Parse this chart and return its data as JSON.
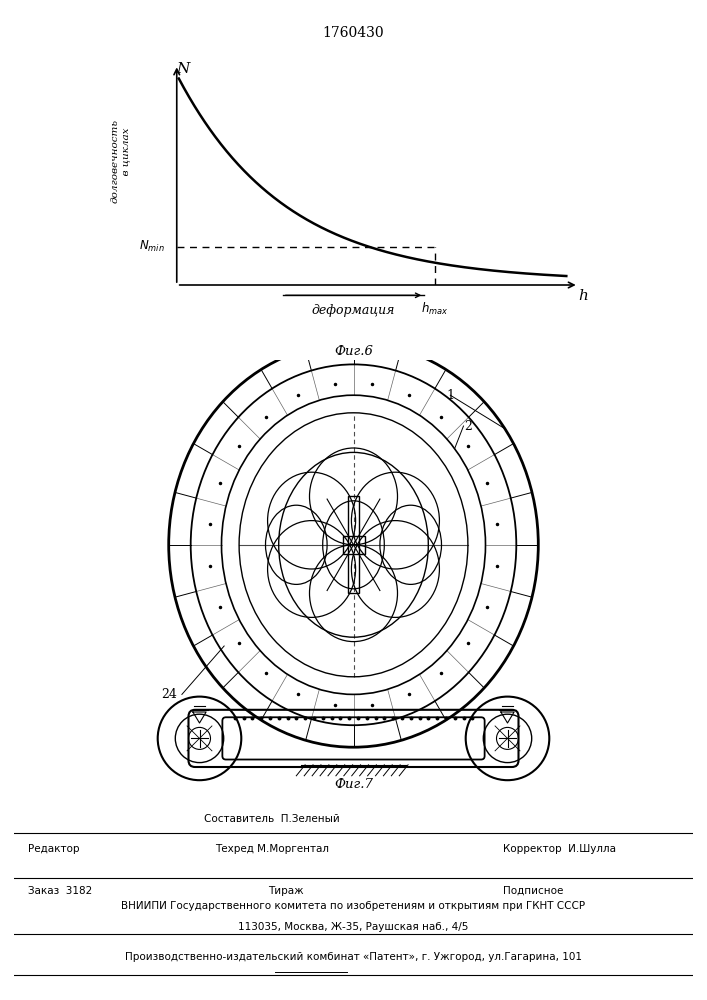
{
  "title_text": "1760430",
  "background_color": "#ffffff",
  "graph": {
    "x_label": "h",
    "y_label": "N",
    "nmin_label": "N_{min}",
    "hmax_label": "h_{max}",
    "deformacia_label": "деформация",
    "fig6_label": "Фиг.6"
  },
  "fig7_label": "Фиг.7",
  "ylabel_text": "долговечность\nв циклах",
  "footer": {
    "editor": "Редактор",
    "compiler": "Составитель  П.Зеленый",
    "techred": "Техред М.Моргентал",
    "corrector": "Корректор  И.Шулла",
    "order": "Заказ  3182",
    "tirazh": "Тираж",
    "podpisnoe": "Подписное",
    "vniipи": "ВНИИПИ Государственного комитета по изобретениям и открытиям при ГКНТ СССР",
    "address": "113035, Москва, Ж-35, Раушская наб., 4/5",
    "plant": "Производственно-издательский комбинат «Патент», г. Ужгород, ул.Гагарина, 101"
  }
}
